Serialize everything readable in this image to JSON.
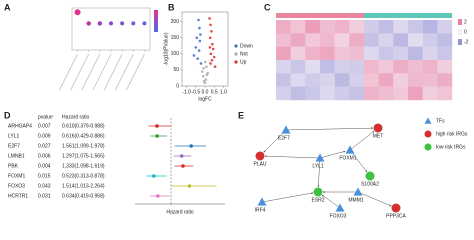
{
  "chart_data": [
    {
      "type": "dotplot",
      "panel_label": "A",
      "categories": [
        null,
        null,
        null,
        null,
        null,
        null,
        null
      ],
      "values": [
        2.7,
        1.9,
        1.9,
        1.9,
        1.9,
        1.9,
        1.9
      ],
      "sizes": [
        3,
        2.2,
        2.2,
        2,
        2,
        2,
        2
      ],
      "colors": [
        "#e0338a",
        "#c0309e",
        "#9a3cc0",
        "#8a46c8",
        "#7a52d0",
        "#6a5cd8",
        "#5a66e0"
      ],
      "ylim": [
        0,
        3
      ]
    },
    {
      "type": "scatter",
      "panel_label": "B",
      "xlabel": "logFC",
      "ylabel": "-log10(PValue)",
      "xlim": [
        -1.25,
        1.25
      ],
      "ylim": [
        0,
        230
      ],
      "xticks": [
        {
          "value": -1,
          "label": "-1.0"
        },
        -0.5,
        {
          "value": 0,
          "label": "0.0"
        },
        0.5,
        {
          "value": 1,
          "label": "1.0"
        }
      ],
      "yticks": [
        0,
        50,
        100,
        150,
        200
      ],
      "legend": "right",
      "series": [
        {
          "name": "Down",
          "color": "#3a6fc4",
          "x": [
            -0.35,
            -0.3,
            -0.45,
            -0.25,
            -0.5,
            -0.28,
            -0.6,
            -0.32,
            -0.4,
            -0.22
          ],
          "values": [
            205,
            180,
            150,
            160,
            120,
            140,
            95,
            110,
            85,
            70
          ]
        },
        {
          "name": "Not",
          "color": "#aaaaaa",
          "x": [
            -0.1,
            -0.05,
            0.05,
            0.1,
            0.0,
            -0.15,
            0.15,
            0.08,
            -0.08,
            0.02
          ],
          "values": [
            30,
            15,
            20,
            35,
            10,
            45,
            40,
            60,
            55,
            75
          ]
        },
        {
          "name": "Up",
          "color": "#d62f2f",
          "x": [
            0.25,
            0.3,
            0.35,
            0.28,
            0.4,
            0.45,
            0.32,
            0.5,
            0.38,
            0.27,
            0.55,
            0.3
          ],
          "values": [
            210,
            190,
            170,
            150,
            130,
            115,
            100,
            90,
            80,
            120,
            60,
            70
          ]
        }
      ]
    },
    {
      "type": "heatmap",
      "panel_label": "C",
      "group_colors": [
        "#e8879c",
        "#5fc7b6"
      ],
      "group_sizes": [
        6,
        6
      ],
      "zlim": [
        -2,
        2
      ],
      "zticks": [
        2,
        0,
        -2
      ],
      "values": [
        [
          1.2,
          0.8,
          1.5,
          0.9,
          1.1,
          0.6,
          -0.8,
          -1.1,
          -0.5,
          -0.9,
          -1.3,
          -0.7
        ],
        [
          0.9,
          1.3,
          0.7,
          1.0,
          0.5,
          1.2,
          -1.0,
          -0.6,
          -1.2,
          -0.4,
          -0.8,
          -1.1
        ],
        [
          1.4,
          0.6,
          1.1,
          1.3,
          0.8,
          0.9,
          -0.5,
          -0.9,
          -0.7,
          -1.2,
          -0.6,
          -0.9
        ],
        [
          -0.6,
          -0.9,
          -0.4,
          -1.1,
          -0.7,
          -0.8,
          1.0,
          0.7,
          1.2,
          0.9,
          1.1,
          0.6
        ],
        [
          -1.0,
          -0.5,
          -0.8,
          -0.6,
          -1.2,
          -0.7,
          0.8,
          1.3,
          0.6,
          1.0,
          0.9,
          1.2
        ],
        [
          -0.7,
          -1.1,
          -0.9,
          -0.5,
          -0.8,
          -1.0,
          1.1,
          0.9,
          0.7,
          1.4,
          0.6,
          0.8
        ]
      ]
    },
    {
      "type": "forest",
      "panel_label": "D",
      "headers": [
        "pvalue",
        "Hazard ratio"
      ],
      "xlabel": "Hazard ratio",
      "categories": [
        "ARHGAP4",
        "LYL1",
        "E2F7",
        "LMNB1",
        "PBK",
        "FOXM1",
        "FOXO3",
        "HCRTR1"
      ],
      "pvalues": [
        0.007,
        0.009,
        0.027,
        0.006,
        0.004,
        0.015,
        0.043,
        0.031
      ],
      "values": [
        0.61,
        0.616,
        1.561,
        1.297,
        1.333,
        0.523,
        1.514,
        0.634
      ],
      "lower": [
        0.379,
        0.429,
        1.099,
        1.075,
        1.098,
        0.313,
        1.013,
        0.419
      ],
      "upper": [
        0.988,
        0.886,
        1.978,
        1.565,
        1.619,
        0.878,
        2.264,
        0.958
      ],
      "value_labels": [
        "0.610(0.379-0.988)",
        "0.616(0.429-0.886)",
        "1.561(1.099-1.978)",
        "1.297(1.075-1.565)",
        "1.333(1.098-1.619)",
        "0.523(0.313-0.878)",
        "1.514(1.013-2.264)",
        "0.634(0.419-0.958)"
      ],
      "colors": [
        "#d62728",
        "#2ca02c",
        "#1f77b4",
        "#9467bd",
        "#d62728",
        "#17becf",
        "#bcbd22",
        "#e377c2"
      ],
      "xlim": [
        0,
        2.5
      ],
      "reference": 1
    }
  ],
  "diagram": {
    "panel_label": "E",
    "legend": [
      "TFs",
      "high risk IRGs",
      "low risk IRGs"
    ],
    "nodes": [
      {
        "label": "E2F7",
        "kind": "tf"
      },
      {
        "label": "MET",
        "kind": "high"
      },
      {
        "label": "PLAU",
        "kind": "high"
      },
      {
        "label": "LYL1",
        "kind": "tf"
      },
      {
        "label": "FOXM1",
        "kind": "tf"
      },
      {
        "label": "S100A2",
        "kind": "low"
      },
      {
        "label": "ESR2",
        "kind": "low"
      },
      {
        "label": "MMM1",
        "kind": "tf"
      },
      {
        "label": "IRF4",
        "kind": "tf"
      },
      {
        "label": "FOXO3",
        "kind": "tf"
      },
      {
        "label": "PPP3CA",
        "kind": "high"
      }
    ],
    "edges": [
      [
        0,
        2
      ],
      [
        0,
        1
      ],
      [
        3,
        2
      ],
      [
        3,
        4
      ],
      [
        4,
        1
      ],
      [
        4,
        5
      ],
      [
        3,
        6
      ],
      [
        8,
        6
      ],
      [
        7,
        6
      ],
      [
        9,
        6
      ],
      [
        7,
        10
      ]
    ]
  }
}
